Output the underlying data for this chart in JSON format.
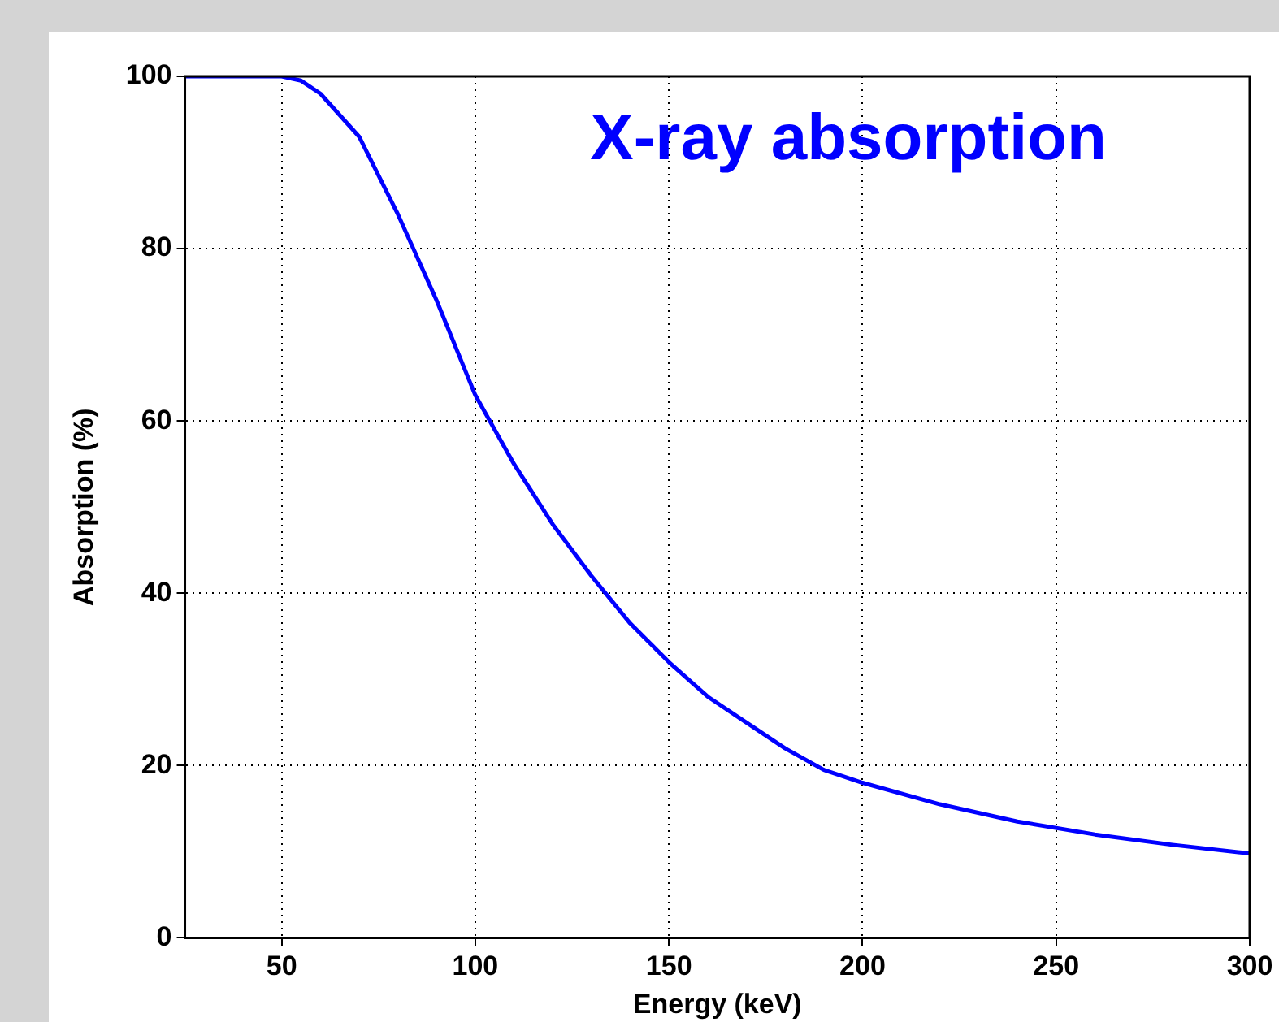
{
  "chart_data": {
    "type": "line",
    "xlabel": "Energy (keV)",
    "ylabel": "Absorption (%)",
    "annotations": [
      "X-ray absorption"
    ],
    "xlim": [
      25,
      300
    ],
    "xticks": [
      50,
      100,
      150,
      200,
      250,
      300
    ],
    "ylim": [
      0,
      100
    ],
    "yticks": [
      0,
      20,
      40,
      60,
      80,
      100
    ],
    "grid": true,
    "marker": "none",
    "line_style": "solid",
    "series": [
      {
        "color": "#0000ff",
        "x": [
          25,
          50,
          55,
          60,
          70,
          80,
          90,
          100,
          110,
          120,
          130,
          140,
          150,
          160,
          170,
          180,
          190,
          200,
          220,
          240,
          260,
          280,
          300
        ],
        "values": [
          100,
          100,
          99.5,
          98,
          93,
          84,
          74,
          63,
          55,
          48,
          42,
          36.5,
          32,
          28,
          25,
          22,
          19.5,
          18,
          15.5,
          13.5,
          12,
          10.8,
          9.8
        ]
      }
    ]
  }
}
